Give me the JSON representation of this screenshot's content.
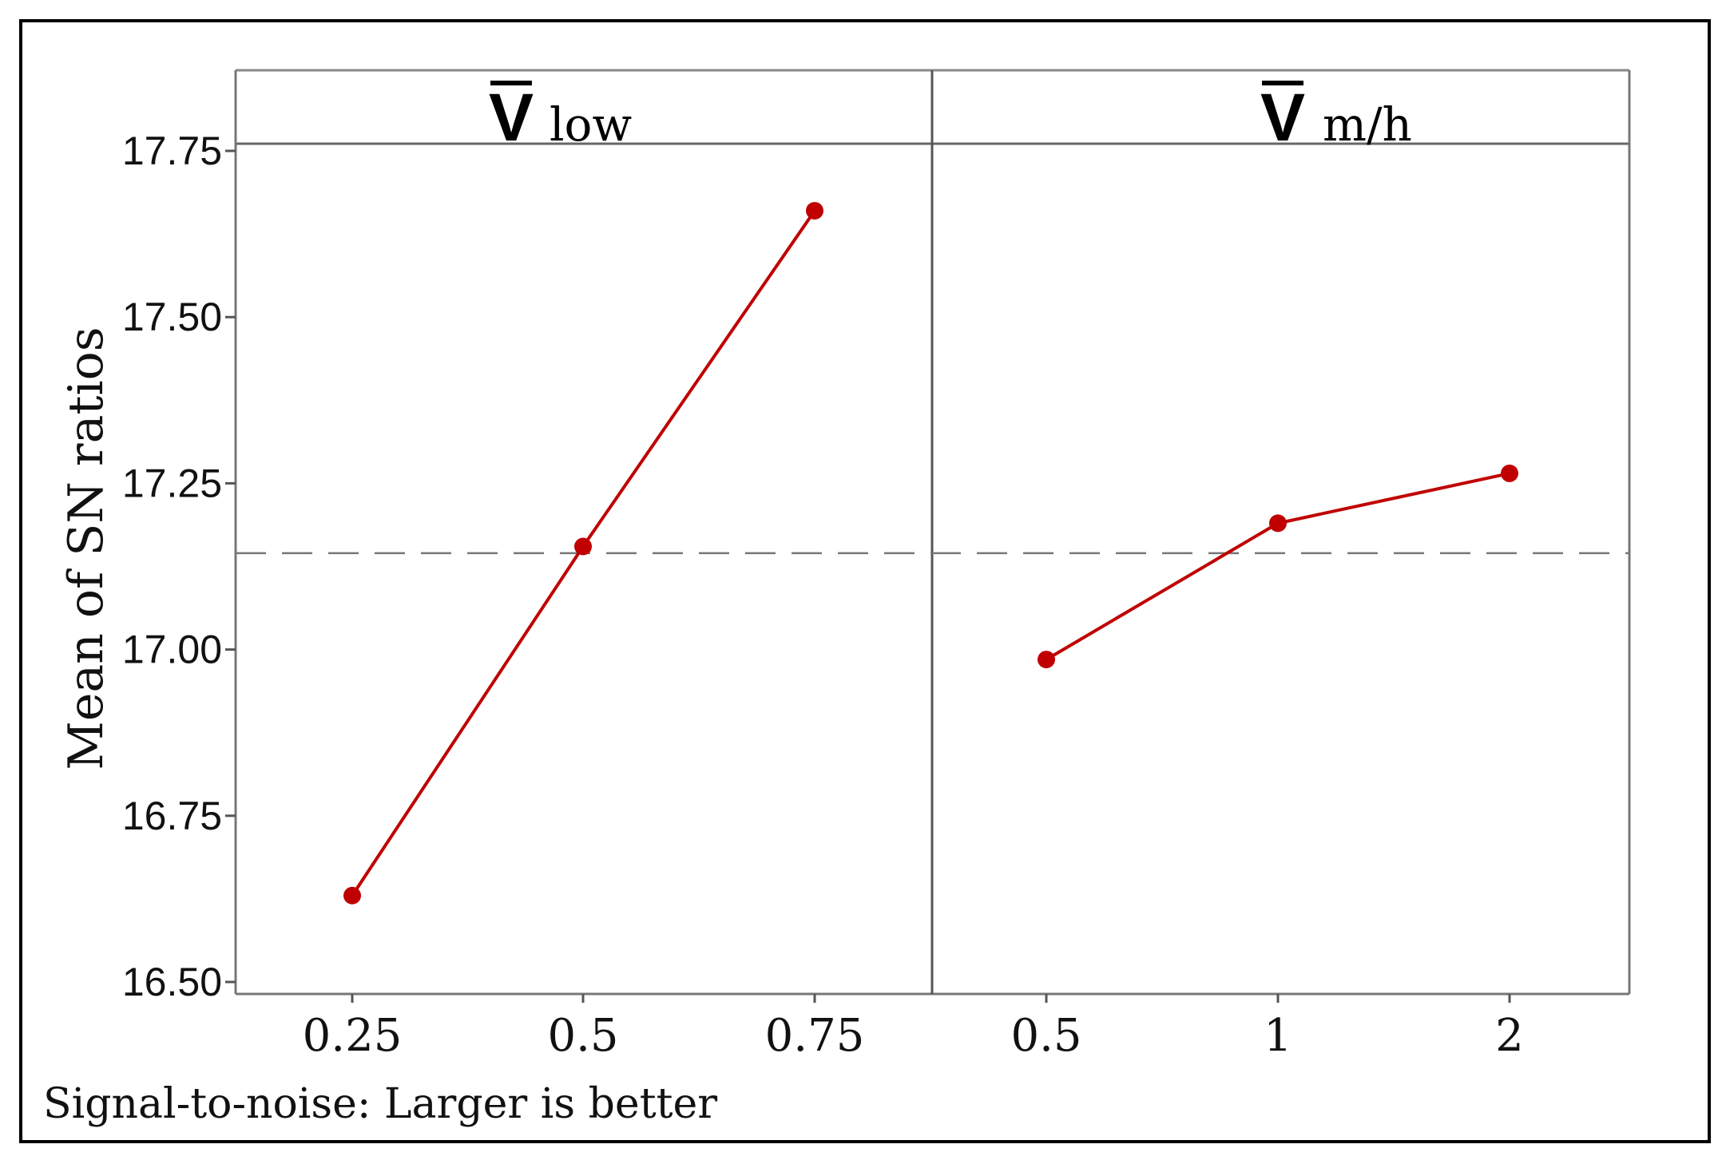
{
  "chart_data": {
    "type": "line",
    "title": "",
    "ylabel": "Mean of SN ratios",
    "ylim": [
      16.5,
      17.75
    ],
    "yticks": [
      "16.50",
      "16.75",
      "17.00",
      "17.25",
      "17.50",
      "17.75"
    ],
    "ytick_values": [
      16.5,
      16.75,
      17.0,
      17.25,
      17.5,
      17.75
    ],
    "reference_line": 17.145,
    "footnote": "Signal-to-noise: Larger is better",
    "line_color": "#c00000",
    "panels": [
      {
        "symbol": "V",
        "subscript": "low",
        "categories": [
          "0.25",
          "0.5",
          "0.75"
        ],
        "values": [
          16.63,
          17.155,
          17.66
        ]
      },
      {
        "symbol": "V",
        "subscript": "m/h",
        "categories": [
          "0.5",
          "1",
          "2"
        ],
        "values": [
          16.985,
          17.19,
          17.265
        ]
      }
    ]
  }
}
